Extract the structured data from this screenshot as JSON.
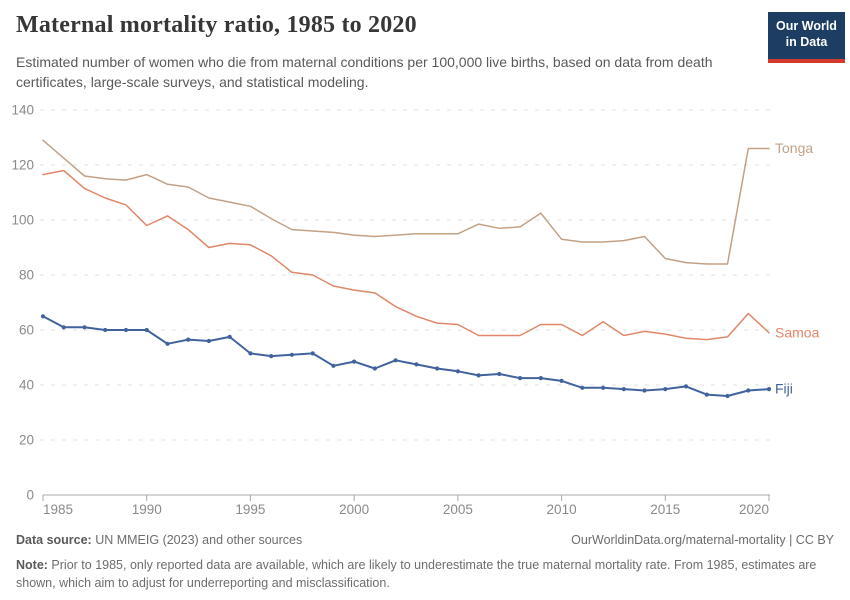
{
  "header": {
    "title": "Maternal mortality ratio, 1985 to 2020",
    "subtitle": "Estimated number of women who die from maternal conditions per 100,000 live births, based on data from death certificates, large-scale surveys, and statistical modeling.",
    "logo": {
      "line1": "Our World",
      "line2": "in Data"
    }
  },
  "chart_data": {
    "type": "line",
    "title": "Maternal mortality ratio, 1985 to 2020",
    "x": [
      1985,
      1986,
      1987,
      1988,
      1989,
      1990,
      1991,
      1992,
      1993,
      1994,
      1995,
      1996,
      1997,
      1998,
      1999,
      2000,
      2001,
      2002,
      2003,
      2004,
      2005,
      2006,
      2007,
      2008,
      2009,
      2010,
      2011,
      2012,
      2013,
      2014,
      2015,
      2016,
      2017,
      2018,
      2019,
      2020
    ],
    "series": [
      {
        "name": "Tonga",
        "color": "#c2a185",
        "markers": false,
        "values": [
          129,
          122.5,
          116,
          115,
          114.5,
          116.5,
          113,
          112,
          108,
          106.5,
          105,
          100.5,
          96.5,
          96,
          95.5,
          94.5,
          94,
          94.5,
          95,
          95,
          95,
          98.5,
          97,
          97.5,
          102.5,
          93,
          92,
          92,
          92.5,
          94,
          86,
          84.5,
          84,
          84,
          126,
          126
        ]
      },
      {
        "name": "Samoa",
        "color": "#e0876a",
        "markers": false,
        "values": [
          116.5,
          118,
          111.5,
          108,
          105.5,
          98,
          101.5,
          96.5,
          90,
          91.5,
          91,
          87,
          81,
          80,
          76,
          74.5,
          73.5,
          68.5,
          65,
          62.5,
          62,
          58,
          58,
          58,
          62,
          62,
          58,
          63,
          58,
          59.5,
          58.5,
          57,
          56.5,
          57.5,
          66,
          59
        ]
      },
      {
        "name": "Fiji",
        "color": "#42629e",
        "markers": true,
        "values": [
          65,
          61,
          61,
          60,
          60,
          60,
          55,
          56.5,
          56,
          57.5,
          51.5,
          50.5,
          51,
          51.5,
          47,
          48.5,
          46,
          49,
          47.5,
          46,
          45,
          43.5,
          44,
          42.5,
          42.5,
          41.5,
          39,
          39,
          38.5,
          38,
          38.5,
          39.5,
          36.5,
          36,
          38,
          38.5
        ]
      }
    ],
    "ylim": [
      0,
      140
    ],
    "yticks": [
      0,
      20,
      40,
      60,
      80,
      100,
      120,
      140
    ],
    "xticks": [
      1985,
      1990,
      1995,
      2000,
      2005,
      2010,
      2015,
      2020
    ],
    "xlabel": "",
    "ylabel": "",
    "grid": "horizontal-dashed",
    "legend_position": "line-end-labels-right"
  },
  "footer": {
    "source_label": "Data source:",
    "source_text": " UN MMEIG (2023) and other sources",
    "link_text": "OurWorldinData.org/maternal-mortality | CC BY",
    "note_label": "Note:",
    "note_text": " Prior to 1985, only reported data are available, which are likely to underestimate the true maternal mortality rate. From 1985, estimates are shown, which aim to adjust for underreporting and misclassification."
  },
  "colors": {
    "logo_bg": "#1d3d63",
    "logo_stripe": "#d23a2e",
    "gridline": "#e0e0e0",
    "axis": "#a8a8a8",
    "tick_label": "#8a8a8a",
    "title": "#373737",
    "subtitle": "#595959",
    "footer": "#6d6d6d"
  }
}
